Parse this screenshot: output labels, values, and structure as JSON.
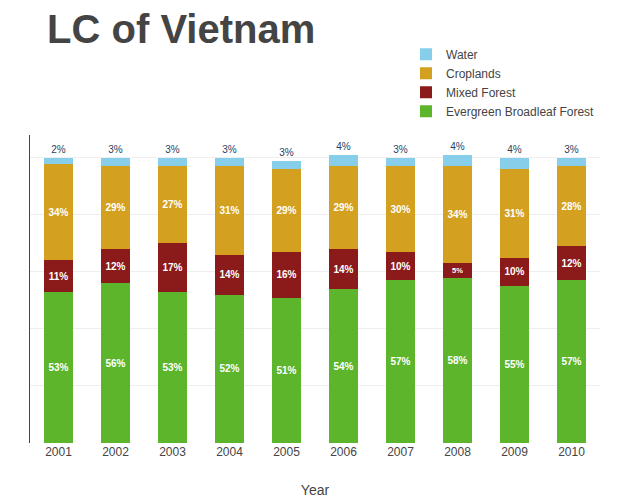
{
  "chart_data": {
    "type": "bar",
    "stacked": true,
    "title": "LC of Vietnam",
    "x_label": "Year",
    "categories": [
      "2001",
      "2002",
      "2003",
      "2004",
      "2005",
      "2006",
      "2007",
      "2008",
      "2009",
      "2010"
    ],
    "series": [
      {
        "name": "Evergreen Broadleaf Forest",
        "color": "#5cb52b",
        "values": [
          53,
          56,
          53,
          52,
          51,
          54,
          57,
          58,
          55,
          57
        ],
        "value_labels": [
          "53%",
          "56%",
          "53%",
          "52%",
          "51%",
          "54%",
          "57%",
          "58%",
          "55%",
          "57%"
        ]
      },
      {
        "name": "Mixed Forest",
        "color": "#8b1a1a",
        "values": [
          11,
          12,
          17,
          14,
          16,
          14,
          10,
          5,
          10,
          12
        ],
        "value_labels": [
          "11%",
          "12%",
          "17%",
          "14%",
          "16%",
          "14%",
          "10%",
          "5%",
          "10%",
          "12%"
        ]
      },
      {
        "name": "Croplands",
        "color": "#d4a020",
        "values": [
          34,
          29,
          27,
          31,
          29,
          29,
          30,
          34,
          31,
          28
        ],
        "value_labels": [
          "34%",
          "29%",
          "27%",
          "31%",
          "29%",
          "29%",
          "30%",
          "34%",
          "31%",
          "28%"
        ]
      },
      {
        "name": "Water",
        "color": "#87ceeb",
        "values": [
          2,
          3,
          3,
          3,
          3,
          4,
          3,
          4,
          4,
          3
        ],
        "value_labels": [
          "2%",
          "3%",
          "3%",
          "3%",
          "3%",
          "4%",
          "3%",
          "4%",
          "4%",
          "3%"
        ]
      }
    ],
    "ylim": [
      0,
      108
    ],
    "yticks": [
      20,
      40,
      60,
      80,
      100
    ],
    "grid": true,
    "data_labels": true,
    "tick_labels": "x",
    "legend": "top right"
  }
}
